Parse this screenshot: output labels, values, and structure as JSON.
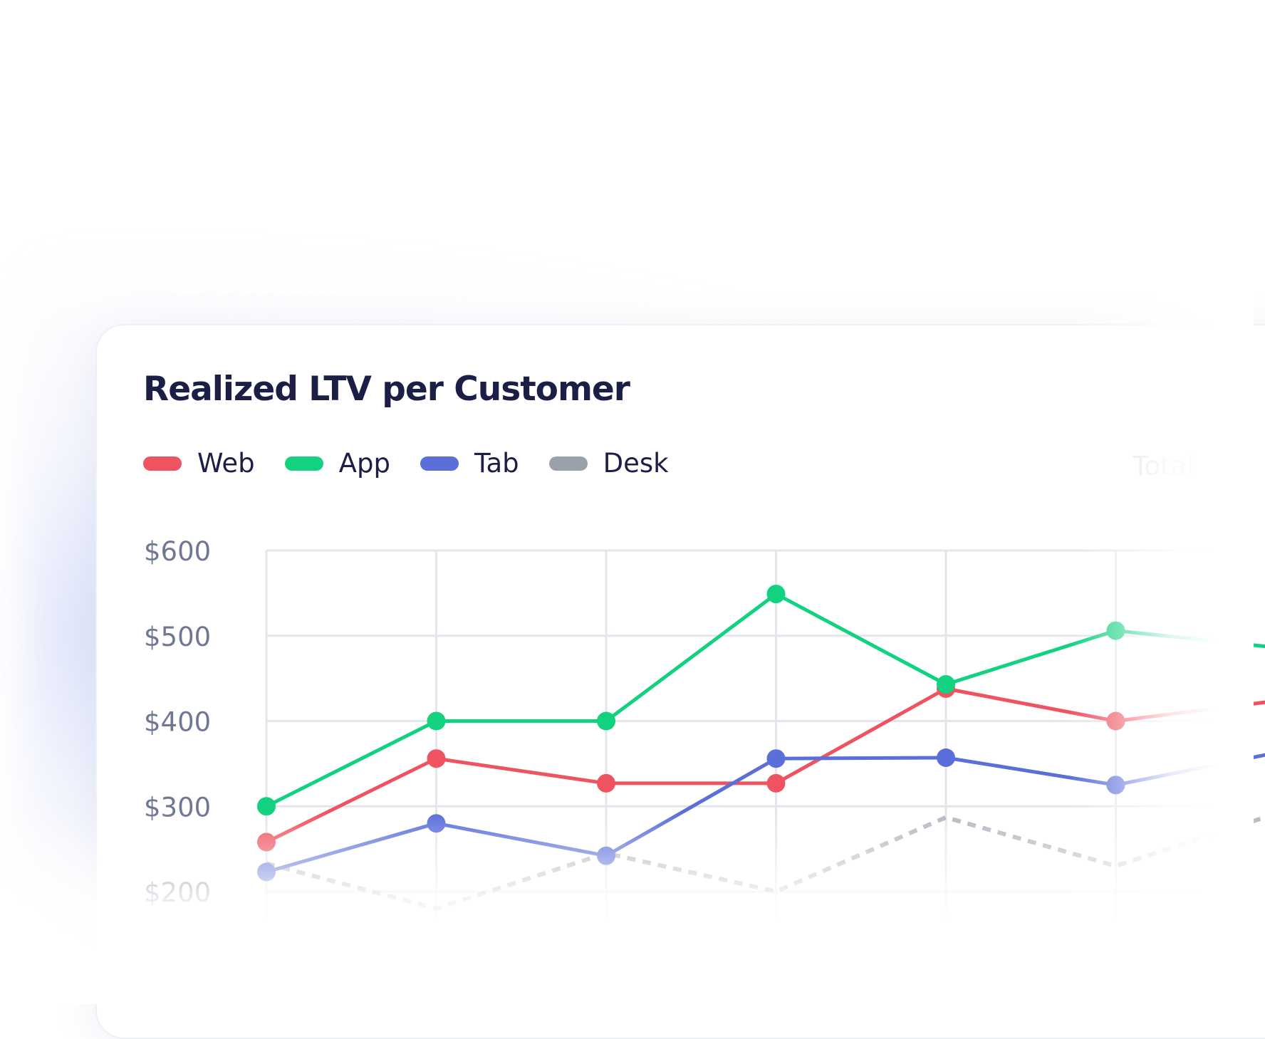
{
  "card": {
    "title": "Realized LTV per Customer",
    "total_label": "Total"
  },
  "legend": [
    {
      "label": "Web",
      "color": "#ef5360"
    },
    {
      "label": "App",
      "color": "#12d17f"
    },
    {
      "label": "Tab",
      "color": "#5a6fd8"
    },
    {
      "label": "Desk",
      "color": "#9aa0ac"
    }
  ],
  "chart_data": {
    "type": "line",
    "title": "Realized LTV per Customer",
    "xlabel": "",
    "ylabel": "",
    "x": [
      1,
      2,
      3,
      4,
      5,
      6,
      7
    ],
    "ylim": [
      200,
      600
    ],
    "yticks": [
      {
        "value": 600,
        "label": "$600"
      },
      {
        "value": 500,
        "label": "$500"
      },
      {
        "value": 400,
        "label": "$400"
      },
      {
        "value": 300,
        "label": "$300"
      },
      {
        "value": 200,
        "label": "$200"
      }
    ],
    "grid": true,
    "legend_position": "top-left",
    "series": [
      {
        "name": "Web",
        "color": "#ef5360",
        "style": "solid",
        "markers": true,
        "values": [
          258,
          356,
          327,
          327,
          438,
          400,
          425
        ]
      },
      {
        "name": "App",
        "color": "#12d17f",
        "style": "solid",
        "markers": true,
        "values": [
          300,
          400,
          400,
          549,
          443,
          506,
          485
        ]
      },
      {
        "name": "Tab",
        "color": "#5a6fd8",
        "style": "solid",
        "markers": true,
        "values": [
          223,
          280,
          242,
          356,
          357,
          325,
          365
        ]
      },
      {
        "name": "Desk",
        "color": "#9aa0ac",
        "style": "dashed",
        "markers": false,
        "values": [
          233,
          180,
          245,
          200,
          287,
          230,
          295
        ]
      }
    ]
  }
}
